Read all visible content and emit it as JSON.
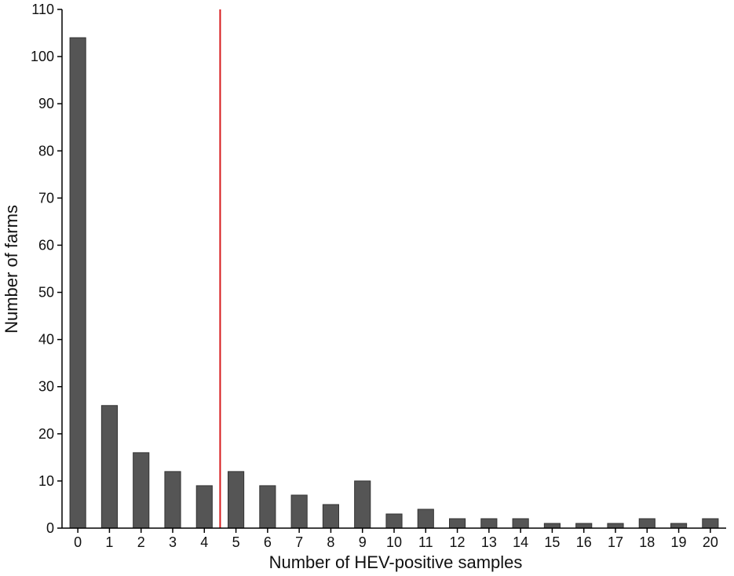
{
  "chart_data": {
    "type": "bar",
    "title": "",
    "xlabel": "Number of HEV-positive samples",
    "ylabel": "Number of farms",
    "categories": [
      "0",
      "1",
      "2",
      "3",
      "4",
      "5",
      "6",
      "7",
      "8",
      "9",
      "10",
      "11",
      "12",
      "13",
      "14",
      "15",
      "16",
      "17",
      "18",
      "19",
      "20"
    ],
    "values": [
      104,
      26,
      16,
      12,
      9,
      12,
      9,
      7,
      5,
      10,
      3,
      4,
      2,
      2,
      2,
      1,
      1,
      1,
      2,
      1,
      2
    ],
    "ylim": [
      0,
      110
    ],
    "yticks": [
      0,
      10,
      20,
      30,
      40,
      50,
      60,
      70,
      80,
      90,
      100,
      110
    ],
    "grid": false,
    "legend": "none",
    "bar_color": "#555555",
    "bar_edge_color": "#333333",
    "reference_line": {
      "orientation": "vertical",
      "x": 4.5,
      "color": "#d7191c"
    }
  }
}
